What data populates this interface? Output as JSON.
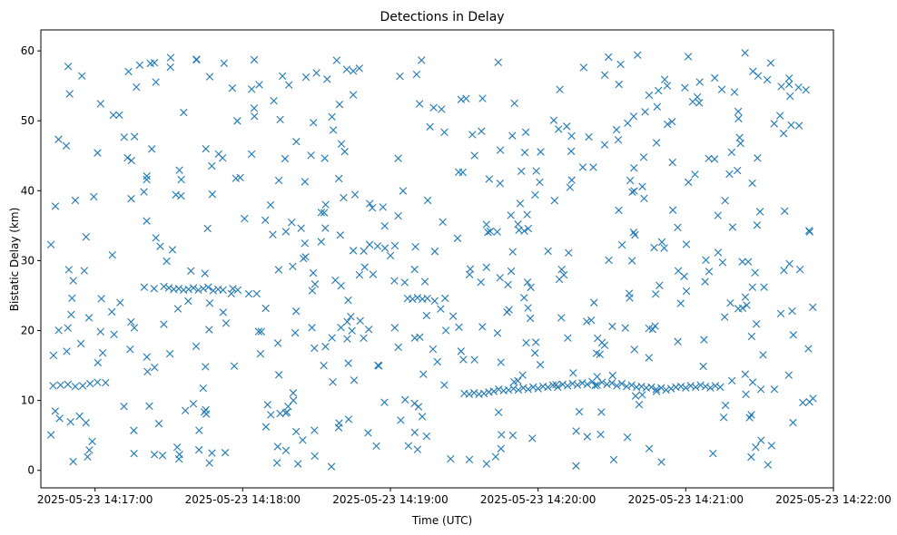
{
  "chart_data": {
    "type": "scatter",
    "title": "Detections in Delay",
    "xlabel": "Time (UTC)",
    "ylabel": "Bistatic Delay (km)",
    "x_unit": "seconds since 2025-05-23 14:17:00 UTC",
    "xlim": [
      -22,
      300
    ],
    "ylim": [
      -2.5,
      63
    ],
    "x_ticks": [
      {
        "value": 0,
        "label": "2025-05-23 14:17:00"
      },
      {
        "value": 60,
        "label": "2025-05-23 14:18:00"
      },
      {
        "value": 120,
        "label": "2025-05-23 14:19:00"
      },
      {
        "value": 180,
        "label": "2025-05-23 14:20:00"
      },
      {
        "value": 240,
        "label": "2025-05-23 14:21:00"
      },
      {
        "value": 300,
        "label": "2025-05-23 14:22:00"
      }
    ],
    "y_ticks": [
      0,
      10,
      20,
      30,
      40,
      50,
      60
    ],
    "marker": "x",
    "color": "#1f77b4",
    "track_points": [
      [
        -17,
        12.1
      ],
      [
        -14,
        12.2
      ],
      [
        -11,
        12.3
      ],
      [
        -8,
        12.0
      ],
      [
        -5,
        12.1
      ],
      [
        -2,
        12.4
      ],
      [
        1,
        12.6
      ],
      [
        20,
        26.2
      ],
      [
        24,
        26.0
      ],
      [
        28,
        26.3
      ],
      [
        30,
        26.1
      ],
      [
        32,
        25.9
      ],
      [
        34,
        26.0
      ],
      [
        36,
        25.8
      ],
      [
        38,
        25.9
      ],
      [
        40,
        26.1
      ],
      [
        42,
        25.8
      ],
      [
        44,
        26.0
      ],
      [
        46,
        26.2
      ],
      [
        48,
        25.7
      ],
      [
        50,
        25.9
      ],
      [
        52,
        25.8
      ],
      [
        56,
        26.0
      ],
      [
        58,
        25.8
      ],
      [
        127,
        24.6
      ],
      [
        129,
        24.5
      ],
      [
        131,
        24.7
      ],
      [
        133,
        24.5
      ],
      [
        135,
        24.6
      ],
      [
        150,
        11.0
      ],
      [
        152,
        10.9
      ],
      [
        154,
        11.1
      ],
      [
        156,
        10.9
      ],
      [
        158,
        11.0
      ],
      [
        160,
        11.2
      ],
      [
        162,
        11.3
      ],
      [
        164,
        11.6
      ],
      [
        166,
        11.4
      ],
      [
        168,
        11.5
      ],
      [
        170,
        11.7
      ],
      [
        172,
        11.5
      ],
      [
        174,
        11.8
      ],
      [
        176,
        11.6
      ],
      [
        178,
        11.9
      ],
      [
        180,
        11.7
      ],
      [
        182,
        12.0
      ],
      [
        184,
        11.9
      ],
      [
        186,
        12.2
      ],
      [
        188,
        11.9
      ],
      [
        190,
        12.3
      ],
      [
        192,
        12.1
      ],
      [
        194,
        12.4
      ],
      [
        196,
        12.2
      ],
      [
        198,
        12.5
      ],
      [
        200,
        12.3
      ],
      [
        202,
        12.7
      ],
      [
        204,
        12.2
      ],
      [
        206,
        12.6
      ],
      [
        208,
        12.3
      ],
      [
        210,
        12.5
      ],
      [
        212,
        12.1
      ],
      [
        214,
        12.4
      ],
      [
        216,
        12.0
      ],
      [
        218,
        12.2
      ],
      [
        220,
        11.9
      ],
      [
        222,
        12.0
      ],
      [
        224,
        11.8
      ],
      [
        226,
        11.9
      ],
      [
        228,
        11.6
      ],
      [
        230,
        11.8
      ],
      [
        232,
        11.5
      ],
      [
        234,
        11.7
      ],
      [
        236,
        11.9
      ],
      [
        238,
        12.0
      ],
      [
        240,
        11.8
      ],
      [
        242,
        12.1
      ],
      [
        244,
        11.9
      ],
      [
        246,
        12.2
      ],
      [
        248,
        12.0
      ],
      [
        250,
        11.8
      ],
      [
        252,
        12.1
      ],
      [
        254,
        11.9
      ]
    ],
    "random_points_summary": {
      "count": 560,
      "x_range": [
        -18,
        292
      ],
      "y_range": [
        0.5,
        60
      ],
      "distribution": "approximately uniform scatter of detections over the window"
    }
  }
}
